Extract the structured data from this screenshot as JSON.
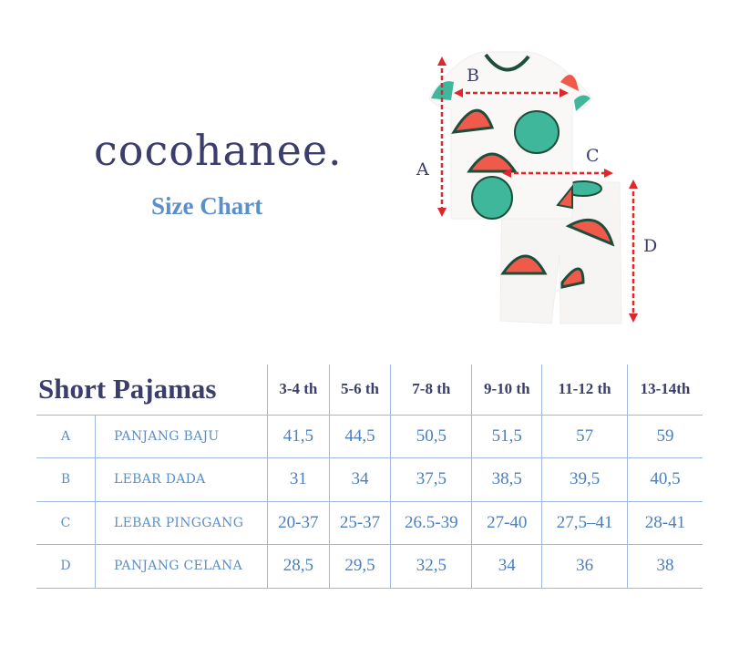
{
  "brand": {
    "logo_text": "cocohanee.",
    "subtitle": "Size Chart"
  },
  "diagram": {
    "labels": {
      "a": "A",
      "b": "B",
      "c": "C",
      "d": "D"
    },
    "arrow_color": "#e0262b",
    "print": "watermelon"
  },
  "table": {
    "title": "Short Pajamas",
    "sizes": [
      "3-4 th",
      "5-6 th",
      "7-8 th",
      "9-10 th",
      "11-12 th",
      "13-14th"
    ],
    "rows": [
      {
        "code": "A",
        "label": "PANJANG BAJU",
        "values": [
          "41,5",
          "44,5",
          "50,5",
          "51,5",
          "57",
          "59"
        ]
      },
      {
        "code": "B",
        "label": "LEBAR DADA",
        "values": [
          "31",
          "34",
          "37,5",
          "38,5",
          "39,5",
          "40,5"
        ]
      },
      {
        "code": "C",
        "label": "LEBAR PINGGANG",
        "values": [
          "20-37",
          "25-37",
          "26.5-39",
          "27-40",
          "27,5–41",
          "28-41"
        ]
      },
      {
        "code": "D",
        "label": "PANJANG CELANA",
        "values": [
          "28,5",
          "29,5",
          "32,5",
          "34",
          "36",
          "38"
        ]
      }
    ]
  },
  "colors": {
    "navy": "#3b3d6b",
    "blue": "#5b8fcb",
    "grid": "#9fb8dd"
  }
}
